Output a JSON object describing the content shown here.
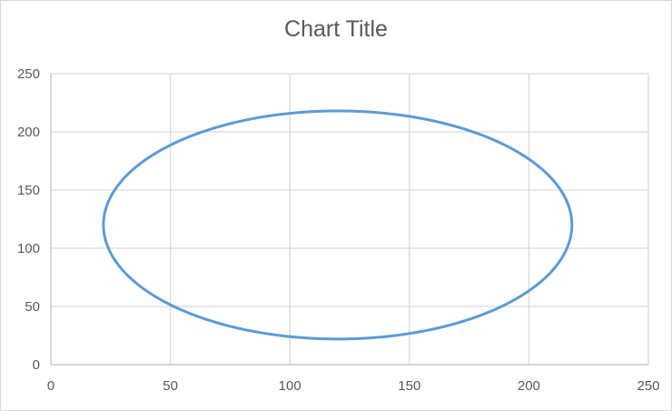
{
  "chart_data": {
    "type": "scatter",
    "title": "Chart Title",
    "xlabel": "",
    "ylabel": "",
    "xlim": [
      0,
      250
    ],
    "ylim": [
      0,
      250
    ],
    "x_ticks": [
      "0",
      "50",
      "100",
      "150",
      "200",
      "250"
    ],
    "y_ticks": [
      "0",
      "50",
      "100",
      "150",
      "200",
      "250"
    ],
    "grid": true,
    "legend": "none",
    "line_color": "#5b9bd5",
    "series": [
      {
        "style": "smooth-line",
        "shape": "ellipse",
        "center": [
          120,
          120
        ],
        "radius_x": 98,
        "radius_y": 98
      }
    ]
  }
}
